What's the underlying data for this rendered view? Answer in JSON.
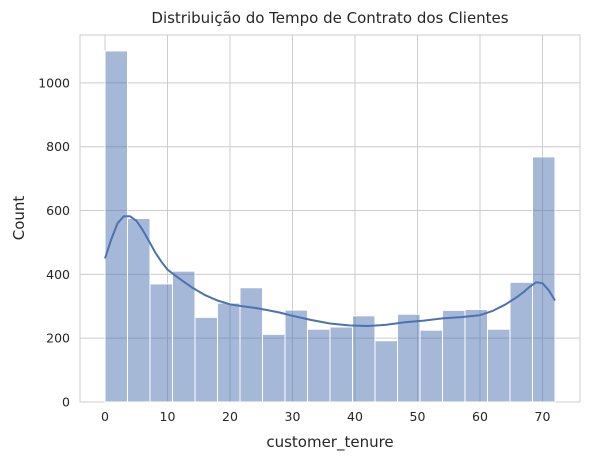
{
  "chart_data": {
    "type": "bar",
    "subtype": "histogram_with_kde",
    "title": "Distribuição do Tempo de Contrato dos Clientes",
    "xlabel": "customer_tenure",
    "ylabel": "Count",
    "xlim": [
      -4,
      76
    ],
    "ylim": [
      0,
      1150
    ],
    "xticks": [
      0,
      10,
      20,
      30,
      40,
      50,
      60,
      70
    ],
    "yticks": [
      0,
      200,
      400,
      600,
      800,
      1000
    ],
    "grid": true,
    "bar_color": "#4c72b0",
    "bar_alpha": 0.5,
    "bin_edges": [
      0,
      3.6,
      7.2,
      10.8,
      14.4,
      18,
      21.6,
      25.2,
      28.8,
      32.4,
      36,
      39.6,
      43.2,
      46.8,
      50.4,
      54,
      57.6,
      61.2,
      64.8,
      68.4,
      72
    ],
    "values": [
      1100,
      575,
      370,
      410,
      265,
      310,
      358,
      212,
      288,
      228,
      235,
      270,
      192,
      275,
      225,
      287,
      290,
      228,
      375,
      768
    ],
    "kde": {
      "color": "#4c72b0",
      "x": [
        0,
        1,
        2,
        3,
        4,
        5,
        6,
        7,
        8,
        9,
        10,
        12,
        14,
        16,
        18,
        20,
        22,
        24,
        26,
        28,
        30,
        33,
        36,
        39,
        42,
        45,
        48,
        51,
        54,
        57,
        60,
        62,
        64,
        66,
        67,
        68,
        69,
        70,
        71,
        72
      ],
      "y": [
        450,
        510,
        560,
        582,
        582,
        568,
        540,
        505,
        470,
        440,
        415,
        385,
        358,
        335,
        318,
        306,
        300,
        295,
        288,
        280,
        270,
        257,
        246,
        240,
        238,
        242,
        250,
        255,
        262,
        266,
        272,
        285,
        305,
        330,
        345,
        362,
        375,
        372,
        350,
        318
      ]
    }
  }
}
